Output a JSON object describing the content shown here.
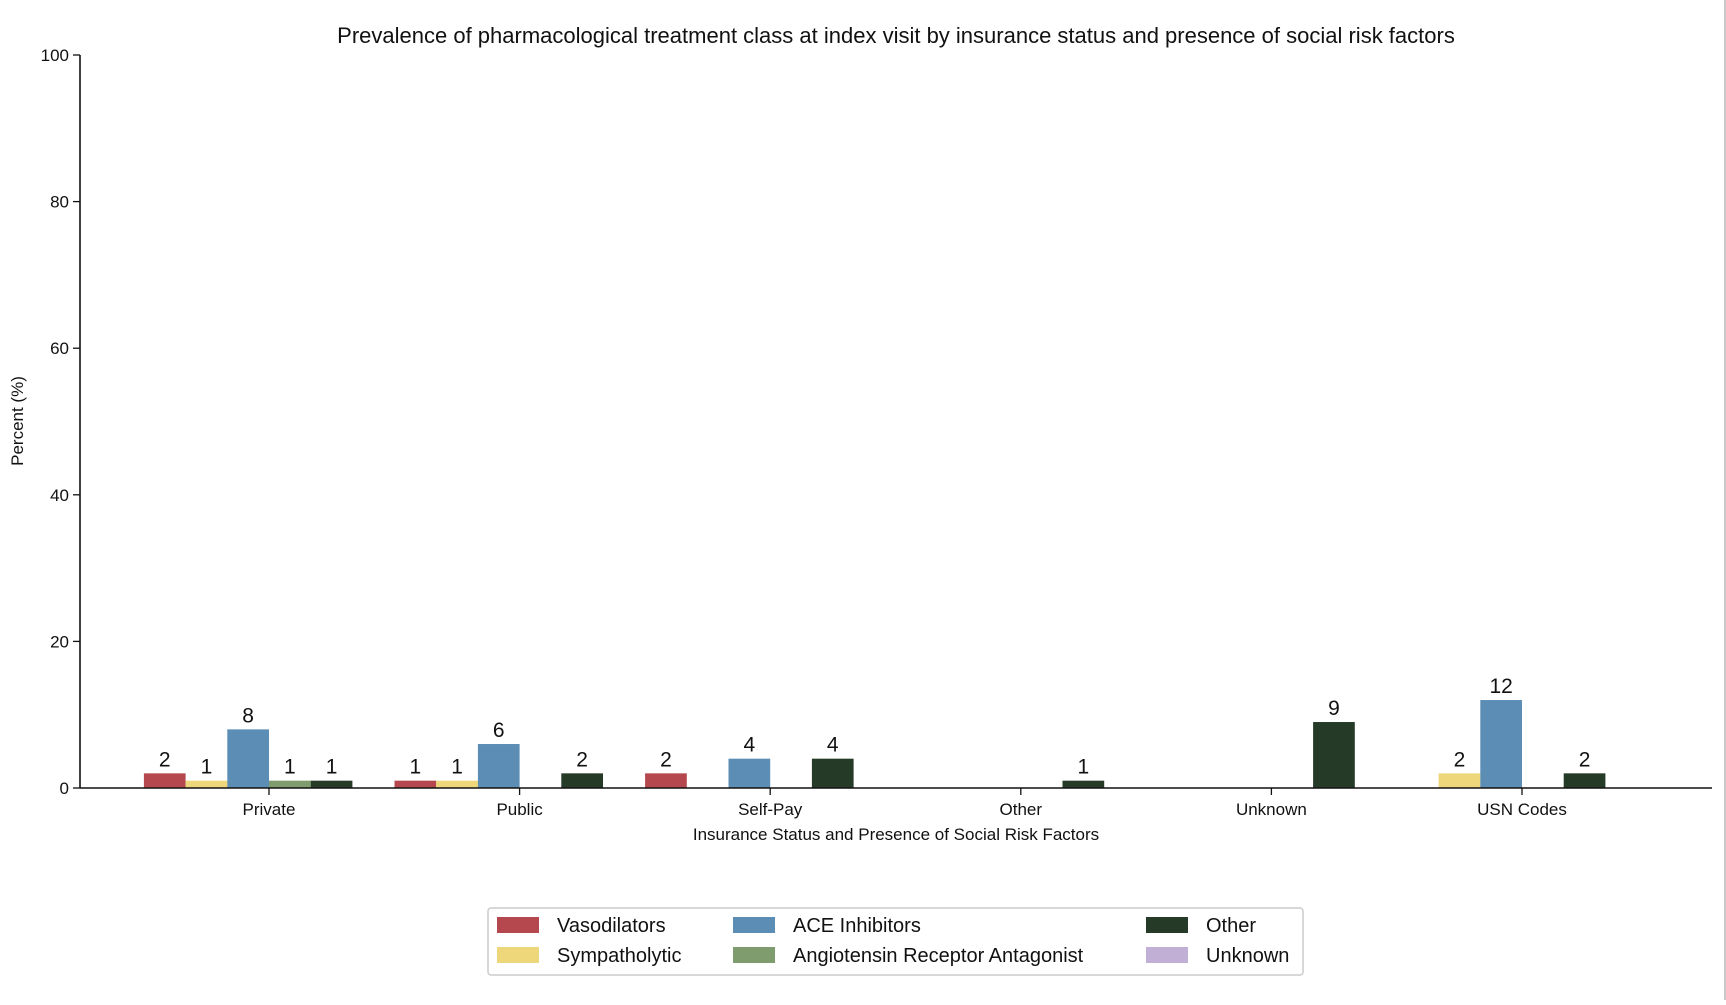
{
  "chart_data": {
    "type": "bar",
    "title": "Prevalence of pharmacological treatment class at index visit by insurance status and presence of social risk factors",
    "xlabel": "Insurance Status and Presence of Social Risk Factors",
    "ylabel": "Percent (%)",
    "ylim": [
      0,
      100
    ],
    "yticks": [
      "0",
      "20",
      "40",
      "60",
      "80",
      "100"
    ],
    "grid": false,
    "legend_position": "bottom-center",
    "categories": [
      "Private",
      "Public",
      "Self-Pay",
      "Other",
      "Unknown",
      "USN Codes"
    ],
    "series": [
      {
        "name": "Vasodilators",
        "color": "#b5474f",
        "values": [
          2,
          1,
          2,
          0,
          0,
          0
        ],
        "labels": [
          "2",
          "1",
          "2",
          "",
          "",
          ""
        ]
      },
      {
        "name": "Sympatholytic",
        "color": "#edd77a",
        "values": [
          1,
          1,
          0,
          0,
          0,
          2
        ],
        "labels": [
          "1",
          "1",
          "",
          "",
          "",
          "2"
        ]
      },
      {
        "name": "ACE Inhibitors",
        "color": "#5b8db5",
        "values": [
          8,
          6,
          4,
          0,
          0,
          12
        ],
        "labels": [
          "8",
          "6",
          "4",
          "",
          "",
          "12"
        ]
      },
      {
        "name": "Angiotensin Receptor Antagonist",
        "color": "#7f9c6e",
        "values": [
          1,
          0,
          0,
          0,
          0,
          0
        ],
        "labels": [
          "1",
          "",
          "",
          "",
          "",
          ""
        ]
      },
      {
        "name": "Other",
        "color": "#253a27",
        "values": [
          1,
          2,
          4,
          1,
          9,
          2
        ],
        "labels": [
          "1",
          "2",
          "4",
          "1",
          "9",
          "2"
        ]
      },
      {
        "name": "Unknown",
        "color": "#c1afd6",
        "values": [
          0,
          0,
          0,
          0,
          0,
          0
        ],
        "labels": [
          "",
          "",
          "",
          "",
          "",
          ""
        ]
      }
    ]
  }
}
